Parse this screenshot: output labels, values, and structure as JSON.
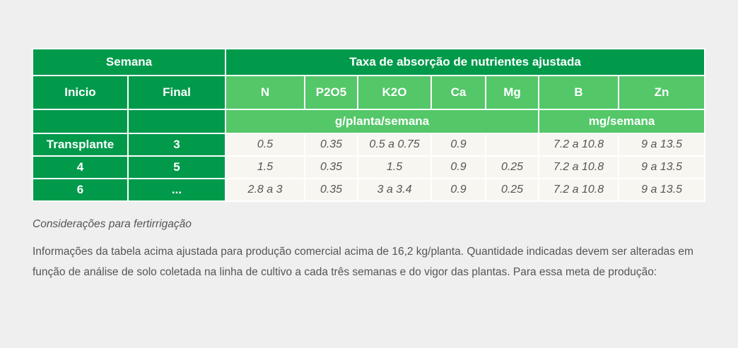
{
  "table": {
    "header_semana": "Semana",
    "header_taxa": "Taxa de absorção de nutrientes ajustada",
    "col_inicio": "Inicio",
    "col_final": "Final",
    "nutrients": [
      "N",
      "P2O5",
      "K2O",
      "Ca",
      "Mg",
      "B",
      "Zn"
    ],
    "unit_g": "g/planta/semana",
    "unit_mg": "mg/semana",
    "rows": [
      {
        "inicio": "Transplante",
        "final": "3",
        "values": [
          "0.5",
          "0.35",
          "0.5 a 0.75",
          "0.9",
          "",
          "7.2 a 10.8",
          "9 a 13.5"
        ]
      },
      {
        "inicio": "4",
        "final": "5",
        "values": [
          "1.5",
          "0.35",
          "1.5",
          "0.9",
          "0.25",
          "7.2 a 10.8",
          "9 a 13.5"
        ]
      },
      {
        "inicio": "6",
        "final": "...",
        "values": [
          "2.8 a 3",
          "0.35",
          "3 a 3.4",
          "0.9",
          "0.25",
          "7.2 a 10.8",
          "9 a 13.5"
        ]
      }
    ]
  },
  "caption": "Considerações para fertirrigação",
  "paragraph": "Informações da tabela acima ajustada para produção comercial acima de 16,2 kg/planta. Quantidade indicadas devem ser alteradas em função de análise de solo coletada na linha de cultivo a cada três semanas e do vigor das plantas. Para essa meta de produção:",
  "colors": {
    "dark_green": "#019a4b",
    "light_green": "#54c769",
    "cell_bg": "#f8f6f0",
    "page_bg": "#eeefee"
  }
}
